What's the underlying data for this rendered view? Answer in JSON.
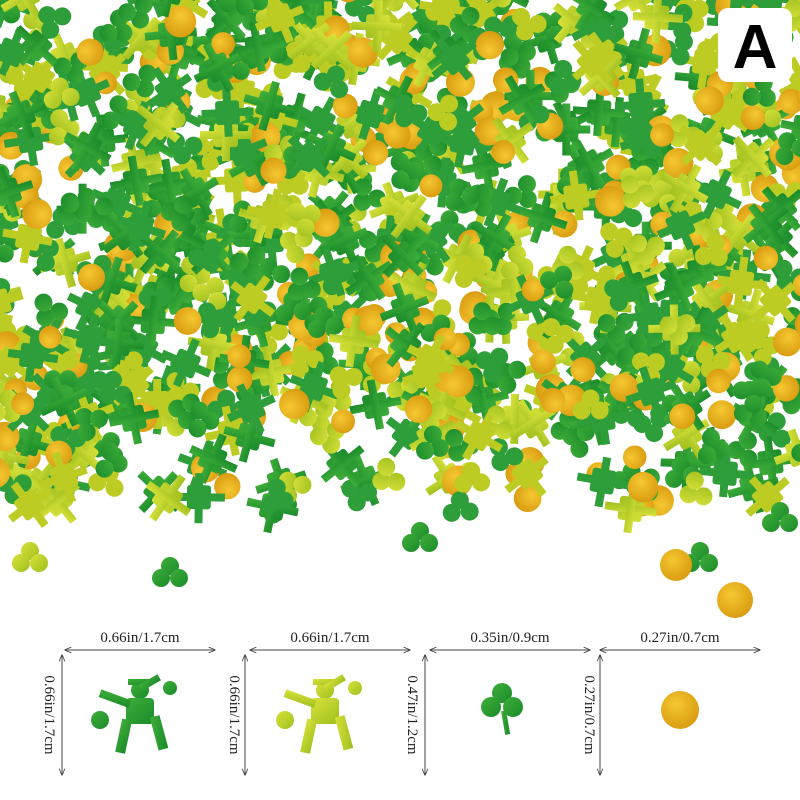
{
  "badge": "A",
  "items": [
    {
      "width": "0.66in/1.7cm",
      "height": "0.66in/1.7cm"
    },
    {
      "width": "0.66in/1.7cm",
      "height": "0.66in/1.7cm"
    },
    {
      "width": "0.35in/0.9cm",
      "height": "0.47in/1.2cm"
    },
    {
      "width": "0.27in/0.7cm",
      "height": "0.27in/0.7cm"
    }
  ]
}
